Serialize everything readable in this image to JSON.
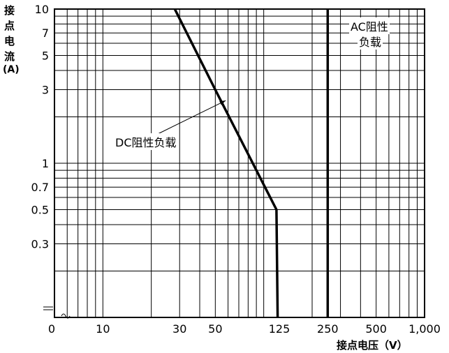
{
  "chart_data": {
    "type": "line",
    "title": "",
    "ylabel_chars": [
      "接",
      "点",
      "电",
      "流",
      "(A)"
    ],
    "xlabel": "接点电压（V）",
    "x_axis": {
      "scale": "log",
      "ticks": [
        {
          "value": 10,
          "label": "10"
        },
        {
          "value": 30,
          "label": "30"
        },
        {
          "value": 50,
          "label": "50"
        },
        {
          "value": 125,
          "label": "125"
        },
        {
          "value": 250,
          "label": "250"
        },
        {
          "value": 500,
          "label": "500"
        },
        {
          "value": 1000,
          "label": "1,000"
        }
      ],
      "origin_label": "0",
      "range": [
        5,
        1000
      ]
    },
    "y_axis": {
      "scale": "log",
      "ticks": [
        {
          "value": 10,
          "label": "10"
        },
        {
          "value": 7,
          "label": "7"
        },
        {
          "value": 5,
          "label": "5"
        },
        {
          "value": 3,
          "label": "3"
        },
        {
          "value": 1,
          "label": "1"
        },
        {
          "value": 0.7,
          "label": "0.7"
        },
        {
          "value": 0.5,
          "label": "0.5"
        },
        {
          "value": 0.3,
          "label": "0.3"
        }
      ],
      "range": [
        0.1,
        10
      ]
    },
    "grid": true,
    "series": [
      {
        "name": "DC阻性负载",
        "points": [
          [
            28,
            10
          ],
          [
            50,
            3
          ],
          [
            120,
            0.5
          ],
          [
            122,
            0.1
          ]
        ]
      },
      {
        "name": "AC阻性负载",
        "points": [
          [
            250,
            10
          ],
          [
            250,
            0.1
          ]
        ]
      }
    ],
    "annotations": {
      "dc_label": "DC阻性负载",
      "ac_label_line1": "AC阻性",
      "ac_label_line2": "负载"
    }
  }
}
